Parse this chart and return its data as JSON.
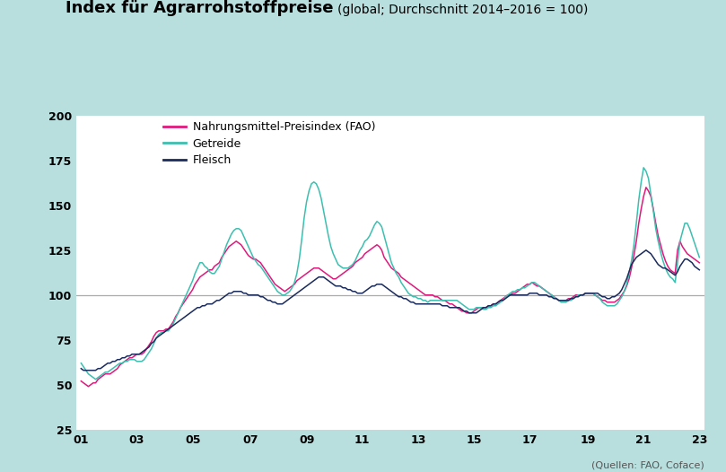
{
  "title_bold": "Index für Agrarrohstoffpreise",
  "title_normal": "(global; Durchschnitt 2014–2016 = 100)",
  "source_text": "(Quellen: FAO, Coface)",
  "background_color": "#b8dede",
  "plot_bg_color": "#ffffff",
  "line_fao_color": "#e0197d",
  "line_getreide_color": "#3dbfb0",
  "line_fleisch_color": "#1a2b5c",
  "legend_labels": [
    "Nahrungsmittel-Preisindex (FAO)",
    "Getreide",
    "Fleisch"
  ],
  "ylim": [
    25,
    200
  ],
  "yticks": [
    25,
    50,
    75,
    100,
    125,
    150,
    175,
    200
  ],
  "xtick_labels": [
    "01",
    "03",
    "05",
    "07",
    "09",
    "11",
    "13",
    "15",
    "17",
    "19",
    "21",
    "23"
  ],
  "hline_y": 100,
  "hline_color": "#aaaaaa",
  "fao": [
    52,
    51,
    50,
    49,
    50,
    51,
    51,
    53,
    54,
    55,
    56,
    56,
    56,
    57,
    58,
    59,
    61,
    62,
    63,
    64,
    65,
    65,
    66,
    67,
    67,
    67,
    68,
    70,
    72,
    74,
    77,
    79,
    80,
    80,
    80,
    81,
    81,
    83,
    85,
    88,
    90,
    93,
    95,
    97,
    99,
    101,
    103,
    106,
    108,
    110,
    111,
    112,
    113,
    114,
    114,
    116,
    117,
    118,
    121,
    123,
    125,
    127,
    128,
    129,
    130,
    129,
    128,
    126,
    124,
    122,
    121,
    120,
    120,
    119,
    118,
    116,
    114,
    112,
    110,
    108,
    106,
    105,
    104,
    103,
    102,
    103,
    104,
    105,
    106,
    108,
    109,
    110,
    111,
    112,
    113,
    114,
    115,
    115,
    115,
    114,
    113,
    112,
    111,
    110,
    109,
    109,
    110,
    111,
    112,
    113,
    114,
    115,
    116,
    118,
    119,
    120,
    121,
    123,
    124,
    125,
    126,
    127,
    128,
    127,
    125,
    121,
    119,
    117,
    115,
    114,
    113,
    112,
    110,
    109,
    108,
    107,
    106,
    105,
    104,
    103,
    102,
    101,
    100,
    100,
    100,
    100,
    99,
    99,
    98,
    97,
    97,
    96,
    95,
    95,
    94,
    93,
    92,
    91,
    91,
    90,
    90,
    90,
    91,
    92,
    93,
    93,
    93,
    93,
    94,
    94,
    95,
    95,
    96,
    97,
    98,
    99,
    100,
    100,
    101,
    101,
    102,
    103,
    104,
    105,
    106,
    106,
    107,
    106,
    105,
    105,
    104,
    103,
    102,
    101,
    100,
    99,
    98,
    97,
    97,
    97,
    97,
    98,
    98,
    99,
    100,
    100,
    100,
    100,
    101,
    101,
    101,
    101,
    100,
    99,
    98,
    97,
    97,
    96,
    96,
    96,
    96,
    97,
    98,
    100,
    102,
    105,
    109,
    115,
    122,
    130,
    140,
    148,
    155,
    160,
    158,
    155,
    148,
    140,
    133,
    128,
    123,
    119,
    116,
    114,
    113,
    112,
    125,
    130,
    127,
    125,
    123,
    122,
    121,
    120,
    119,
    118
  ],
  "getreide": [
    62,
    60,
    58,
    56,
    55,
    54,
    53,
    54,
    55,
    56,
    57,
    57,
    58,
    59,
    60,
    61,
    62,
    62,
    63,
    63,
    64,
    64,
    64,
    63,
    63,
    63,
    64,
    66,
    68,
    70,
    73,
    76,
    78,
    79,
    79,
    80,
    80,
    82,
    84,
    87,
    90,
    93,
    96,
    99,
    102,
    105,
    108,
    112,
    115,
    118,
    118,
    116,
    115,
    113,
    112,
    112,
    114,
    116,
    120,
    124,
    128,
    131,
    134,
    136,
    137,
    137,
    136,
    133,
    130,
    127,
    124,
    121,
    119,
    117,
    116,
    114,
    112,
    110,
    108,
    106,
    104,
    102,
    101,
    100,
    100,
    101,
    102,
    104,
    107,
    112,
    120,
    131,
    143,
    152,
    158,
    162,
    163,
    162,
    159,
    154,
    147,
    140,
    133,
    127,
    123,
    120,
    117,
    116,
    115,
    115,
    115,
    116,
    117,
    119,
    122,
    125,
    127,
    130,
    131,
    133,
    136,
    139,
    141,
    140,
    138,
    133,
    128,
    123,
    118,
    115,
    112,
    110,
    107,
    105,
    103,
    101,
    100,
    99,
    99,
    98,
    98,
    97,
    97,
    96,
    97,
    97,
    97,
    97,
    97,
    97,
    97,
    97,
    97,
    97,
    97,
    97,
    96,
    95,
    94,
    93,
    92,
    92,
    92,
    93,
    93,
    93,
    92,
    92,
    93,
    93,
    94,
    94,
    95,
    96,
    97,
    99,
    100,
    101,
    102,
    102,
    103,
    103,
    104,
    104,
    105,
    106,
    107,
    107,
    106,
    105,
    104,
    103,
    102,
    101,
    100,
    99,
    98,
    97,
    96,
    96,
    96,
    97,
    97,
    98,
    99,
    100,
    100,
    100,
    101,
    101,
    101,
    101,
    100,
    99,
    98,
    96,
    95,
    94,
    94,
    94,
    94,
    95,
    97,
    99,
    102,
    106,
    112,
    119,
    128,
    140,
    153,
    163,
    171,
    169,
    165,
    156,
    147,
    137,
    130,
    124,
    119,
    115,
    112,
    110,
    109,
    107,
    118,
    130,
    135,
    140,
    140,
    137,
    133,
    129,
    125,
    121
  ],
  "fleisch": [
    59,
    58,
    58,
    58,
    58,
    58,
    58,
    59,
    59,
    60,
    61,
    62,
    62,
    63,
    63,
    64,
    64,
    65,
    65,
    66,
    66,
    67,
    67,
    67,
    67,
    68,
    69,
    70,
    71,
    73,
    74,
    76,
    77,
    78,
    79,
    80,
    81,
    82,
    83,
    84,
    85,
    86,
    87,
    88,
    89,
    90,
    91,
    92,
    93,
    93,
    94,
    94,
    95,
    95,
    95,
    96,
    97,
    97,
    98,
    99,
    100,
    101,
    101,
    102,
    102,
    102,
    102,
    101,
    101,
    100,
    100,
    100,
    100,
    100,
    99,
    99,
    98,
    97,
    97,
    96,
    96,
    95,
    95,
    95,
    96,
    97,
    98,
    99,
    100,
    101,
    102,
    103,
    104,
    105,
    106,
    107,
    108,
    109,
    110,
    110,
    110,
    109,
    108,
    107,
    106,
    105,
    105,
    105,
    104,
    104,
    103,
    103,
    102,
    102,
    101,
    101,
    101,
    102,
    103,
    104,
    105,
    105,
    106,
    106,
    106,
    105,
    104,
    103,
    102,
    101,
    100,
    99,
    99,
    98,
    98,
    97,
    96,
    96,
    95,
    95,
    95,
    95,
    95,
    95,
    95,
    95,
    95,
    95,
    95,
    94,
    94,
    94,
    93,
    93,
    93,
    93,
    93,
    92,
    91,
    91,
    90,
    90,
    90,
    90,
    91,
    92,
    93,
    93,
    94,
    94,
    95,
    95,
    96,
    97,
    97,
    98,
    99,
    100,
    100,
    100,
    100,
    100,
    100,
    100,
    100,
    101,
    101,
    101,
    101,
    100,
    100,
    100,
    100,
    99,
    99,
    98,
    98,
    97,
    97,
    97,
    97,
    97,
    98,
    98,
    99,
    99,
    100,
    100,
    101,
    101,
    101,
    101,
    101,
    101,
    100,
    99,
    99,
    98,
    98,
    99,
    99,
    100,
    101,
    103,
    106,
    109,
    113,
    117,
    119,
    121,
    122,
    123,
    124,
    125,
    124,
    123,
    121,
    119,
    117,
    116,
    115,
    115,
    114,
    113,
    112,
    111,
    113,
    116,
    118,
    120,
    120,
    119,
    118,
    116,
    115,
    114
  ]
}
